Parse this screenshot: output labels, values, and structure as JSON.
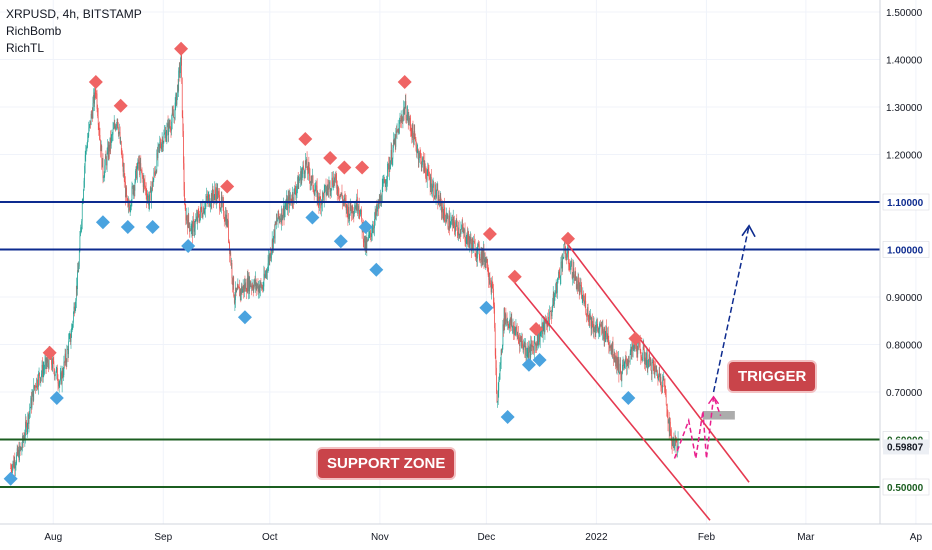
{
  "header": {
    "symbol_line": "XRPUSD, 4h, BITSTAMP",
    "indicators": [
      "RichBomb",
      "RichTL"
    ]
  },
  "annotations": {
    "trigger": "TRIGGER",
    "support_zone": "SUPPORT ZONE"
  },
  "colors": {
    "resistance_line": "#0d2b8f",
    "support_line": "#1b5e20",
    "channel": "#e53950",
    "path_pink": "#e91e8c",
    "forecast_arrow": "#0d2b8f",
    "up_candle": "#26a69a",
    "down_candle": "#ef5350",
    "top_marker": "#ef6464",
    "bottom_marker": "#4aa3df",
    "badge_bg": "#c9444a"
  },
  "chart_data": {
    "type": "candlestick",
    "symbol": "XRPUSD",
    "timeframe": "4h",
    "exchange": "BITSTAMP",
    "ylim": [
      0.42,
      1.52
    ],
    "y_ticks": [
      0.5,
      0.6,
      0.7,
      0.8,
      0.9,
      1.0,
      1.1,
      1.2,
      1.3,
      1.4,
      1.5
    ],
    "y_tick_labels": [
      "0.50000",
      "0.60000",
      "0.70000",
      "0.80000",
      "0.90000",
      "1.00000",
      "1.10000",
      "1.20000",
      "1.30000",
      "1.40000",
      "1.50000"
    ],
    "x_tick_labels": [
      "Aug",
      "Sep",
      "Oct",
      "Nov",
      "Dec",
      "2022",
      "Feb",
      "Mar",
      "Ap"
    ],
    "horizontal_levels": [
      {
        "value": 1.1,
        "label": "1.10000",
        "kind": "resistance"
      },
      {
        "value": 1.0,
        "label": "1.00000",
        "kind": "resistance"
      },
      {
        "value": 0.6,
        "label": "0.60000",
        "kind": "support"
      },
      {
        "value": 0.5,
        "label": "0.50000",
        "kind": "support"
      }
    ],
    "last_price": {
      "value": 0.59807,
      "label": "0.59807"
    },
    "price_path": [
      [
        "2021-07-20",
        0.54
      ],
      [
        "2021-07-23",
        0.58
      ],
      [
        "2021-07-27",
        0.72
      ],
      [
        "2021-07-31",
        0.77
      ],
      [
        "2021-08-03",
        0.72
      ],
      [
        "2021-08-06",
        0.82
      ],
      [
        "2021-08-08",
        0.95
      ],
      [
        "2021-08-10",
        1.2
      ],
      [
        "2021-08-13",
        1.34
      ],
      [
        "2021-08-15",
        1.16
      ],
      [
        "2021-08-17",
        1.22
      ],
      [
        "2021-08-19",
        1.28
      ],
      [
        "2021-08-22",
        1.08
      ],
      [
        "2021-08-25",
        1.18
      ],
      [
        "2021-08-28",
        1.1
      ],
      [
        "2021-08-31",
        1.22
      ],
      [
        "2021-09-04",
        1.28
      ],
      [
        "2021-09-06",
        1.4
      ],
      [
        "2021-09-07",
        1.08
      ],
      [
        "2021-09-09",
        1.04
      ],
      [
        "2021-09-13",
        1.1
      ],
      [
        "2021-09-16",
        1.12
      ],
      [
        "2021-09-19",
        1.06
      ],
      [
        "2021-09-21",
        0.9
      ],
      [
        "2021-09-25",
        0.93
      ],
      [
        "2021-09-29",
        0.92
      ],
      [
        "2021-10-03",
        1.06
      ],
      [
        "2021-10-08",
        1.12
      ],
      [
        "2021-10-11",
        1.18
      ],
      [
        "2021-10-15",
        1.1
      ],
      [
        "2021-10-19",
        1.15
      ],
      [
        "2021-10-23",
        1.08
      ],
      [
        "2021-10-26",
        1.1
      ],
      [
        "2021-10-28",
        1.0
      ],
      [
        "2021-11-01",
        1.1
      ],
      [
        "2021-11-05",
        1.22
      ],
      [
        "2021-11-08",
        1.3
      ],
      [
        "2021-11-12",
        1.2
      ],
      [
        "2021-11-16",
        1.13
      ],
      [
        "2021-11-20",
        1.06
      ],
      [
        "2021-11-24",
        1.04
      ],
      [
        "2021-11-28",
        1.0
      ],
      [
        "2021-12-01",
        0.98
      ],
      [
        "2021-12-03",
        0.9
      ],
      [
        "2021-12-04",
        0.67
      ],
      [
        "2021-12-06",
        0.86
      ],
      [
        "2021-12-09",
        0.83
      ],
      [
        "2021-12-13",
        0.78
      ],
      [
        "2021-12-16",
        0.82
      ],
      [
        "2021-12-19",
        0.86
      ],
      [
        "2021-12-23",
        1.0
      ],
      [
        "2021-12-27",
        0.92
      ],
      [
        "2021-12-31",
        0.84
      ],
      [
        "2022-01-04",
        0.82
      ],
      [
        "2022-01-08",
        0.74
      ],
      [
        "2022-01-12",
        0.8
      ],
      [
        "2022-01-16",
        0.76
      ],
      [
        "2022-01-20",
        0.72
      ],
      [
        "2022-01-22",
        0.6
      ],
      [
        "2022-01-24",
        0.59
      ]
    ],
    "top_markers": [
      [
        "2021-07-31",
        0.77
      ],
      [
        "2021-08-13",
        1.34
      ],
      [
        "2021-08-20",
        1.29
      ],
      [
        "2021-09-06",
        1.41
      ],
      [
        "2021-09-19",
        1.12
      ],
      [
        "2021-10-11",
        1.22
      ],
      [
        "2021-10-18",
        1.18
      ],
      [
        "2021-10-22",
        1.16
      ],
      [
        "2021-10-27",
        1.16
      ],
      [
        "2021-11-08",
        1.34
      ],
      [
        "2021-12-02",
        1.02
      ],
      [
        "2021-12-09",
        0.93
      ],
      [
        "2021-12-15",
        0.82
      ],
      [
        "2021-12-24",
        1.01
      ],
      [
        "2022-01-12",
        0.8
      ]
    ],
    "bottom_markers": [
      [
        "2021-07-20",
        0.53
      ],
      [
        "2021-08-02",
        0.7
      ],
      [
        "2021-08-15",
        1.07
      ],
      [
        "2021-08-22",
        1.06
      ],
      [
        "2021-08-29",
        1.06
      ],
      [
        "2021-09-08",
        1.02
      ],
      [
        "2021-09-24",
        0.87
      ],
      [
        "2021-10-13",
        1.08
      ],
      [
        "2021-10-21",
        1.03
      ],
      [
        "2021-10-28",
        1.06
      ],
      [
        "2021-10-31",
        0.97
      ],
      [
        "2021-12-01",
        0.89
      ],
      [
        "2021-12-07",
        0.66
      ],
      [
        "2021-12-13",
        0.77
      ],
      [
        "2021-12-16",
        0.78
      ],
      [
        "2022-01-10",
        0.7
      ]
    ],
    "channel": {
      "upper": [
        [
          "2021-12-23",
          1.02
        ],
        [
          "2022-02-13",
          0.51
        ]
      ],
      "lower": [
        [
          "2021-12-09",
          0.93
        ],
        [
          "2022-02-02",
          0.43
        ]
      ]
    },
    "projected_path": [
      [
        "2022-01-23",
        0.56
      ],
      [
        "2022-01-27",
        0.64
      ],
      [
        "2022-01-29",
        0.56
      ],
      [
        "2022-01-31",
        0.66
      ],
      [
        "2022-02-01",
        0.56
      ],
      [
        "2022-02-03",
        0.69
      ],
      [
        "2022-02-05",
        0.65
      ]
    ],
    "trigger_zone": {
      "x": [
        "2022-01-31",
        "2022-02-09"
      ],
      "y": [
        0.642,
        0.66
      ]
    },
    "forecast_arrow": [
      [
        "2022-02-03",
        0.7
      ],
      [
        "2022-02-13",
        1.05
      ]
    ]
  }
}
